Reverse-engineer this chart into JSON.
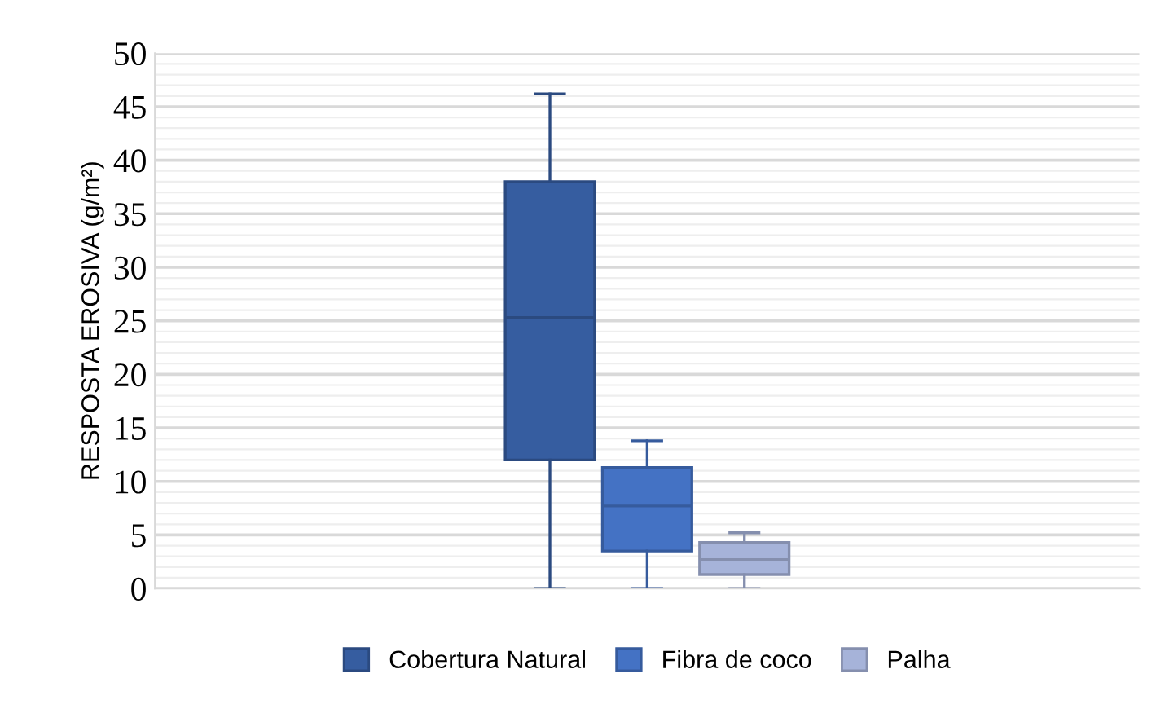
{
  "chart_data": {
    "type": "box",
    "ylabel": "RESPOSTA EROSIVA (g/m²)",
    "categories": [
      null
    ],
    "series": [
      {
        "name": "Cobertura Natural",
        "color": "#365da0",
        "boxes": [
          {
            "low": 0,
            "q1": 12,
            "median": 25.3,
            "q3": 38,
            "high": 46.2
          }
        ]
      },
      {
        "name": "Fibra de coco",
        "color": "#4472c4",
        "boxes": [
          {
            "low": 0,
            "q1": 3.5,
            "median": 7.7,
            "q3": 11.3,
            "high": 13.8
          }
        ]
      },
      {
        "name": "Palha",
        "color": "#a6b3d9",
        "boxes": [
          {
            "low": 0,
            "q1": 1.3,
            "median": 2.7,
            "q3": 4.3,
            "high": 5.2
          }
        ]
      }
    ],
    "ylim": [
      0,
      50
    ],
    "yticks": [
      0,
      5,
      10,
      15,
      20,
      25,
      30,
      35,
      40,
      45,
      50
    ],
    "grid": "y",
    "legend": "bottom"
  }
}
